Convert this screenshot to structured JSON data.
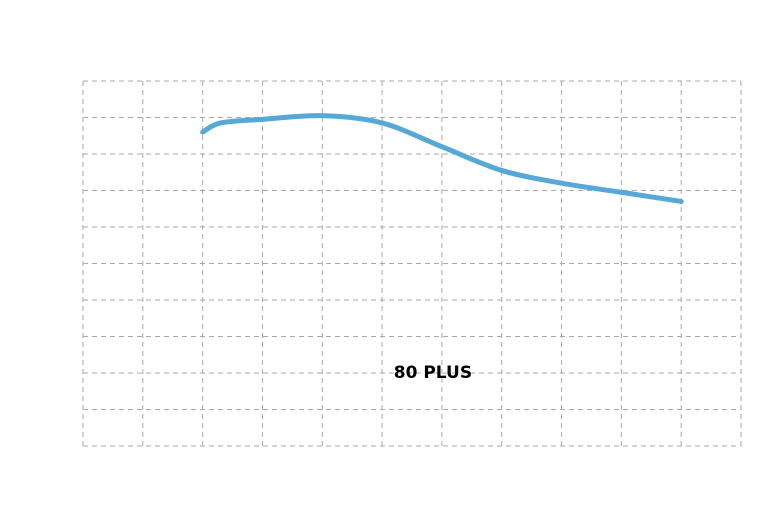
{
  "chart_data": {
    "type": "line",
    "title": "",
    "xlabel": "",
    "ylabel": "",
    "xlim": [
      0,
      11
    ],
    "ylim": [
      0,
      10
    ],
    "grid": true,
    "x_gridlines": 12,
    "y_gridlines": 11,
    "series": [
      {
        "color": "#55a8d8",
        "points": [
          [
            2.0,
            8.6
          ],
          [
            2.3,
            8.85
          ],
          [
            3.0,
            8.95
          ],
          [
            4.0,
            9.05
          ],
          [
            5.0,
            8.85
          ],
          [
            6.0,
            8.2
          ],
          [
            7.0,
            7.55
          ],
          [
            8.0,
            7.2
          ],
          [
            9.0,
            6.95
          ],
          [
            10.0,
            6.7
          ]
        ]
      }
    ],
    "annotations": [
      {
        "text": "80 PLUS",
        "x": 5.85,
        "y": 2.0
      }
    ]
  }
}
